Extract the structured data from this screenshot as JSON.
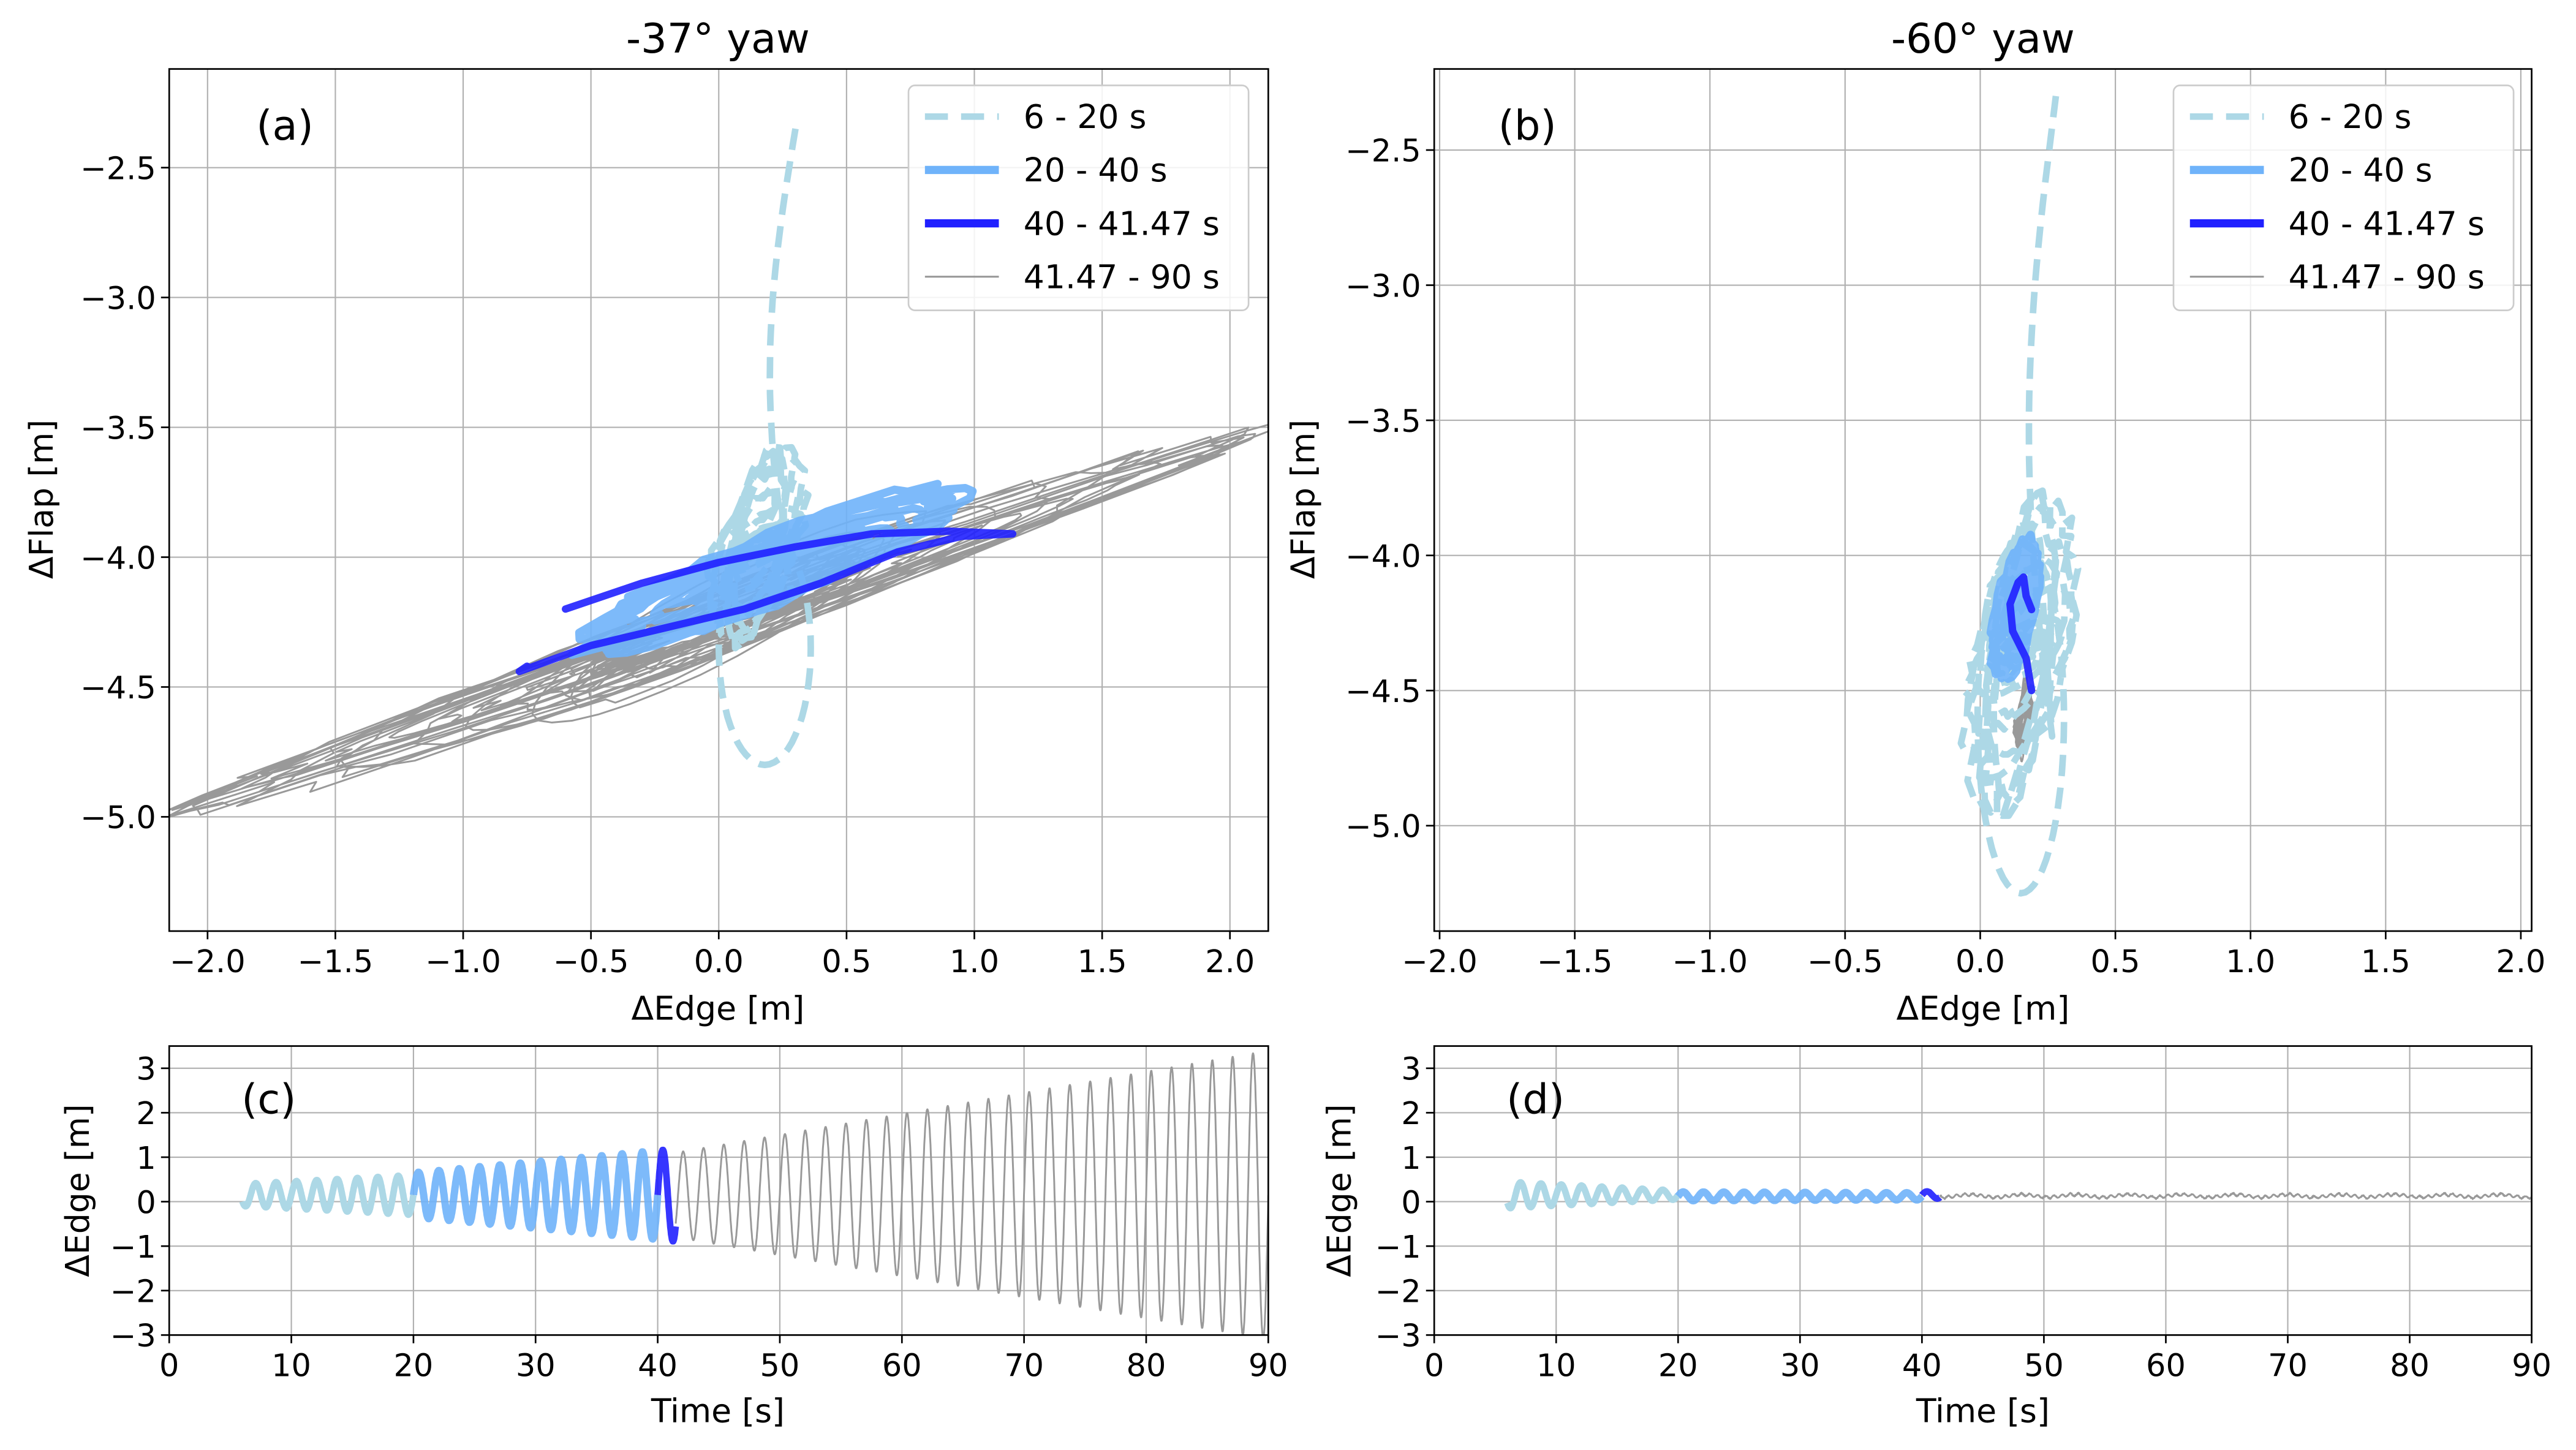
{
  "figure": {
    "panels": [
      "a",
      "b",
      "c",
      "d"
    ]
  },
  "legend": {
    "entries": [
      {
        "label": "6 - 20 s",
        "color": "#add8e6",
        "style": "dashed"
      },
      {
        "label": "20 - 40 s",
        "color": "#6fb3fa",
        "style": "solid-thick"
      },
      {
        "label": "40 - 41.47 s",
        "color": "#2020ff",
        "style": "solid-thick"
      },
      {
        "label": "41.47 - 90 s",
        "color": "#999999",
        "style": "solid-thin"
      }
    ]
  },
  "chart_data": [
    {
      "id": "a",
      "type": "line",
      "title": "-37° yaw",
      "panel_label": "(a)",
      "xlabel": "ΔEdge [m]",
      "ylabel": "ΔFlap [m]",
      "xlim": [
        -2.15,
        2.15
      ],
      "ylim": [
        -5.44,
        -2.12
      ],
      "xticks": [
        -2.0,
        -1.5,
        -1.0,
        -0.5,
        0.0,
        0.5,
        1.0,
        1.5,
        2.0
      ],
      "xtick_labels": [
        "−2.0",
        "−1.5",
        "−1.0",
        "−0.5",
        "0.0",
        "0.5",
        "1.0",
        "1.5",
        "2.0"
      ],
      "yticks": [
        -2.5,
        -3.0,
        -3.5,
        -4.0,
        -4.5,
        -5.0
      ],
      "ytick_labels": [
        "−2.5",
        "−3.0",
        "−3.5",
        "−4.0",
        "−4.5",
        "−5.0"
      ],
      "grid": true,
      "legend_position": "top-right",
      "series": [
        {
          "name": "6 - 20 s",
          "kind": "phase",
          "center": [
            0.15,
            -3.95
          ],
          "amp": [
            0.25,
            0.5
          ],
          "start": [
            0.3,
            -2.35
          ],
          "tilt": 0.0
        },
        {
          "name": "20 - 40 s",
          "kind": "phase",
          "center": [
            0.2,
            -4.05
          ],
          "amp": [
            0.85,
            0.2
          ],
          "tilt": 0.25
        },
        {
          "name": "40 - 41.47 s",
          "kind": "points",
          "x": [
            -0.6,
            -0.3,
            0.0,
            0.3,
            0.6,
            0.9,
            1.15,
            0.95,
            0.7,
            0.4,
            0.1,
            -0.2,
            -0.5,
            -0.78,
            -0.75
          ],
          "y": [
            -4.2,
            -4.1,
            -4.02,
            -3.96,
            -3.91,
            -3.9,
            -3.91,
            -3.92,
            -3.98,
            -4.1,
            -4.2,
            -4.27,
            -4.34,
            -4.44,
            -4.42
          ]
        },
        {
          "name": "41.47 - 90 s",
          "kind": "phase",
          "center": [
            0.0,
            -4.25
          ],
          "amp": [
            2.4,
            0.38
          ],
          "tilt": 0.32
        }
      ]
    },
    {
      "id": "b",
      "type": "line",
      "title": "-60° yaw",
      "panel_label": "(b)",
      "xlabel": "ΔEdge [m]",
      "ylabel": "ΔFlap [m]",
      "xlim": [
        -2.02,
        2.04
      ],
      "ylim": [
        -5.39,
        -2.2
      ],
      "xticks": [
        -2.0,
        -1.5,
        -1.0,
        -0.5,
        0.0,
        0.5,
        1.0,
        1.5,
        2.0
      ],
      "xtick_labels": [
        "−2.0",
        "−1.5",
        "−1.0",
        "−0.5",
        "0.0",
        "0.5",
        "1.0",
        "1.5",
        "2.0"
      ],
      "yticks": [
        -2.5,
        -3.0,
        -3.5,
        -4.0,
        -4.5,
        -5.0
      ],
      "ytick_labels": [
        "−2.5",
        "−3.0",
        "−3.5",
        "−4.0",
        "−4.5",
        "−5.0"
      ],
      "grid": true,
      "legend_position": "top-right",
      "series": [
        {
          "name": "6 - 20 s",
          "kind": "phase",
          "center": [
            0.15,
            -4.35
          ],
          "amp": [
            0.28,
            0.8
          ],
          "start": [
            0.28,
            -2.3
          ],
          "tilt": 0.0
        },
        {
          "name": "20 - 40 s",
          "kind": "phase",
          "center": [
            0.13,
            -4.2
          ],
          "amp": [
            0.1,
            0.3
          ],
          "tilt": 0.0
        },
        {
          "name": "40 - 41.47 s",
          "kind": "points",
          "x": [
            0.19,
            0.17,
            0.12,
            0.11,
            0.14,
            0.16,
            0.17,
            0.19
          ],
          "y": [
            -4.5,
            -4.38,
            -4.28,
            -4.18,
            -4.1,
            -4.08,
            -4.15,
            -4.2
          ]
        },
        {
          "name": "41.47 - 90 s",
          "kind": "phase",
          "center": [
            0.16,
            -4.6
          ],
          "amp": [
            0.04,
            0.3
          ],
          "tilt": 0.0
        }
      ]
    },
    {
      "id": "c",
      "type": "line",
      "panel_label": "(c)",
      "xlabel": "Time [s]",
      "ylabel": "ΔEdge [m]",
      "xlim": [
        0,
        90
      ],
      "ylim": [
        -3,
        3.5
      ],
      "xticks": [
        0,
        10,
        20,
        30,
        40,
        50,
        60,
        70,
        80,
        90
      ],
      "yticks": [
        3,
        2,
        1,
        0,
        -1,
        -2,
        -3
      ],
      "ytick_labels": [
        "3",
        "2",
        "1",
        "0",
        "−1",
        "−2",
        "−3"
      ],
      "grid": true,
      "series": [
        {
          "name": "6 - 20 s",
          "t": [
            6,
            20
          ],
          "offset": 0.15,
          "amp_start": 0.25,
          "amp_end": 0.45,
          "freq_hz": 0.6
        },
        {
          "name": "20 - 40 s",
          "t": [
            20,
            40
          ],
          "offset": 0.15,
          "amp_start": 0.5,
          "amp_end": 1.0,
          "freq_hz": 0.6
        },
        {
          "name": "40 - 41.47 s",
          "t": [
            40,
            41.47
          ],
          "offset": 0.15,
          "amp_start": 1.0,
          "amp_end": 1.05,
          "freq_hz": 0.6
        },
        {
          "name": "41.47 - 90 s",
          "t": [
            41.47,
            90
          ],
          "offset": 0.15,
          "amp_start": 0.95,
          "amp_end": 3.25,
          "freq_hz": 0.6
        }
      ]
    },
    {
      "id": "d",
      "type": "line",
      "panel_label": "(d)",
      "xlabel": "Time [s]",
      "ylabel": "ΔEdge [m]",
      "xlim": [
        0,
        90
      ],
      "ylim": [
        -3,
        3.5
      ],
      "xticks": [
        0,
        10,
        20,
        30,
        40,
        50,
        60,
        70,
        80,
        90
      ],
      "yticks": [
        3,
        2,
        1,
        0,
        -1,
        -2,
        -3
      ],
      "ytick_labels": [
        "3",
        "2",
        "1",
        "0",
        "−1",
        "−2",
        "−3"
      ],
      "grid": true,
      "series": [
        {
          "name": "6 - 20 s",
          "t": [
            6,
            20
          ],
          "offset": 0.15,
          "amp_start": 0.3,
          "amp_end": 0.1,
          "freq_hz": 0.6
        },
        {
          "name": "20 - 40 s",
          "t": [
            20,
            40
          ],
          "offset": 0.12,
          "amp_start": 0.1,
          "amp_end": 0.08,
          "freq_hz": 0.6
        },
        {
          "name": "40 - 41.47 s",
          "t": [
            40,
            41.47
          ],
          "offset": 0.15,
          "amp_start": 0.08,
          "amp_end": 0.08,
          "freq_hz": 0.6
        },
        {
          "name": "41.47 - 90 s",
          "t": [
            41.47,
            90
          ],
          "offset": 0.13,
          "amp_start": 0.03,
          "amp_end": 0.03,
          "freq_hz": 1.5
        }
      ]
    }
  ]
}
